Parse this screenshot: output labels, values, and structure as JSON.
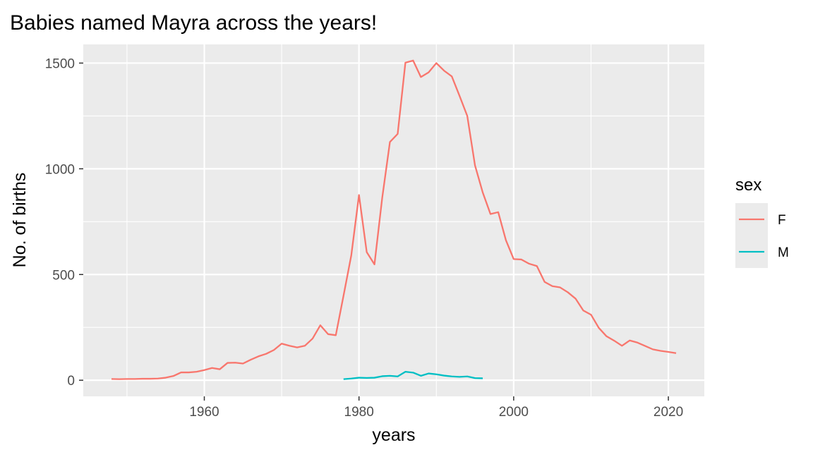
{
  "chart_data": {
    "type": "line",
    "title": "Babies named Mayra across the years!",
    "xlabel": "years",
    "ylabel": "No. of births",
    "xlim": [
      1944.35,
      2024.65
    ],
    "ylim": [
      -76.2,
      1588.2
    ],
    "x_ticks": [
      1960,
      1980,
      2000,
      2020
    ],
    "y_ticks": [
      0,
      500,
      1000,
      1500
    ],
    "grid": true,
    "legend": {
      "title": "sex",
      "position": "right"
    },
    "series": [
      {
        "name": "F",
        "color": "#F8766D",
        "x": [
          1948,
          1949,
          1950,
          1951,
          1952,
          1953,
          1954,
          1955,
          1956,
          1957,
          1958,
          1959,
          1960,
          1961,
          1962,
          1963,
          1964,
          1965,
          1966,
          1967,
          1968,
          1969,
          1970,
          1971,
          1972,
          1973,
          1974,
          1975,
          1976,
          1977,
          1978,
          1979,
          1980,
          1981,
          1982,
          1983,
          1984,
          1985,
          1986,
          1987,
          1988,
          1989,
          1990,
          1991,
          1992,
          1993,
          1994,
          1995,
          1996,
          1997,
          1998,
          1999,
          2000,
          2001,
          2002,
          2003,
          2004,
          2005,
          2006,
          2007,
          2008,
          2009,
          2010,
          2011,
          2012,
          2013,
          2014,
          2015,
          2016,
          2017,
          2018,
          2019,
          2020,
          2021
        ],
        "y": [
          6,
          5,
          6,
          6,
          7,
          7,
          8,
          12,
          20,
          37,
          37,
          40,
          48,
          58,
          52,
          82,
          83,
          79,
          97,
          113,
          125,
          143,
          173,
          163,
          155,
          163,
          197,
          260,
          218,
          213,
          400,
          590,
          876,
          606,
          548,
          862,
          1127,
          1165,
          1502,
          1512,
          1434,
          1456,
          1500,
          1464,
          1437,
          1345,
          1250,
          1016,
          888,
          786,
          795,
          662,
          573,
          571,
          551,
          540,
          465,
          445,
          439,
          416,
          386,
          330,
          310,
          248,
          208,
          187,
          163,
          188,
          178,
          162,
          146,
          139,
          134,
          128
        ]
      },
      {
        "name": "M",
        "color": "#00BFC4",
        "x": [
          1978,
          1979,
          1980,
          1981,
          1982,
          1983,
          1984,
          1985,
          1986,
          1987,
          1988,
          1989,
          1990,
          1991,
          1992,
          1993,
          1994,
          1995,
          1996
        ],
        "y": [
          5,
          8,
          12,
          11,
          12,
          19,
          21,
          18,
          40,
          36,
          21,
          32,
          28,
          22,
          18,
          16,
          18,
          10,
          9
        ]
      }
    ]
  }
}
